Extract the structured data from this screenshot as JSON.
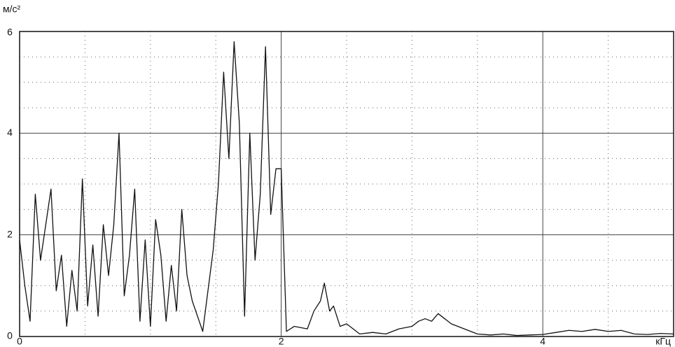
{
  "chart_data": {
    "type": "line",
    "ylabel": "м/с²",
    "xlabel": "кГц",
    "x": [
      0,
      0.04,
      0.08,
      0.12,
      0.16,
      0.2,
      0.24,
      0.28,
      0.32,
      0.36,
      0.4,
      0.44,
      0.48,
      0.52,
      0.56,
      0.6,
      0.64,
      0.68,
      0.72,
      0.76,
      0.8,
      0.84,
      0.88,
      0.92,
      0.96,
      1.0,
      1.04,
      1.08,
      1.12,
      1.16,
      1.2,
      1.24,
      1.28,
      1.32,
      1.36,
      1.4,
      1.44,
      1.48,
      1.52,
      1.56,
      1.6,
      1.64,
      1.68,
      1.72,
      1.76,
      1.8,
      1.84,
      1.88,
      1.92,
      1.96,
      2.0,
      2.04,
      2.1,
      2.2,
      2.25,
      2.3,
      2.33,
      2.37,
      2.4,
      2.45,
      2.5,
      2.6,
      2.7,
      2.8,
      2.9,
      3.0,
      3.05,
      3.1,
      3.15,
      3.2,
      3.25,
      3.3,
      3.4,
      3.5,
      3.6,
      3.7,
      3.8,
      3.9,
      4.0,
      4.1,
      4.2,
      4.3,
      4.4,
      4.5,
      4.6,
      4.7,
      4.8,
      4.9,
      5.0
    ],
    "series": [
      {
        "color": "#111111",
        "values": [
          1.9,
          1.0,
          0.3,
          2.8,
          1.5,
          2.2,
          2.9,
          0.9,
          1.6,
          0.2,
          1.3,
          0.5,
          3.1,
          0.6,
          1.8,
          0.4,
          2.2,
          1.2,
          2.2,
          4.0,
          0.8,
          1.6,
          2.9,
          0.3,
          1.9,
          0.2,
          2.3,
          1.6,
          0.3,
          1.4,
          0.5,
          2.5,
          1.2,
          0.7,
          0.4,
          0.1,
          0.9,
          1.7,
          3.0,
          5.2,
          3.5,
          5.8,
          4.2,
          0.4,
          4.0,
          1.5,
          2.8,
          5.7,
          2.4,
          3.3,
          3.3,
          0.1,
          0.2,
          0.15,
          0.5,
          0.7,
          1.05,
          0.5,
          0.6,
          0.2,
          0.25,
          0.05,
          0.08,
          0.05,
          0.15,
          0.2,
          0.3,
          0.35,
          0.3,
          0.45,
          0.35,
          0.25,
          0.15,
          0.05,
          0.03,
          0.05,
          0.02,
          0.03,
          0.04,
          0.08,
          0.12,
          0.1,
          0.14,
          0.1,
          0.12,
          0.05,
          0.04,
          0.06,
          0.05
        ]
      }
    ],
    "xlim": [
      0,
      5
    ],
    "ylim": [
      0,
      6
    ],
    "xticks": [
      0,
      2,
      4
    ],
    "yticks": [
      0,
      2,
      4,
      6
    ],
    "minor_xticks": [
      0.5,
      1,
      1.5,
      2.5,
      3,
      3.5,
      4.5
    ],
    "minor_yticks": [
      0.5,
      1,
      1.5,
      2.5,
      3,
      3.5,
      4.5,
      5,
      5.5
    ],
    "grid": true
  }
}
